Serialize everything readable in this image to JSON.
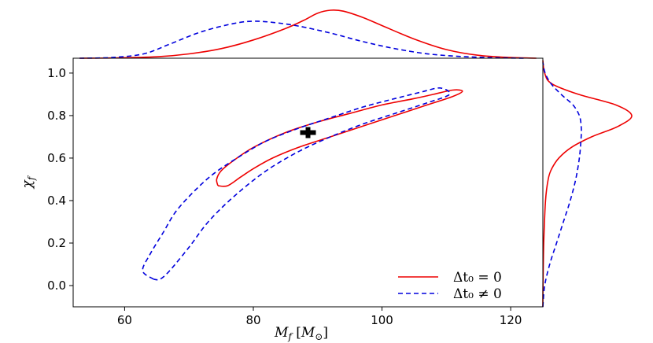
{
  "chart_data": {
    "type": "scatter",
    "xlabel": "M_f [M_⊙]",
    "ylabel": "χ_f",
    "xlim": [
      52,
      125
    ],
    "ylim": [
      -0.1,
      1.07
    ],
    "xticks": [
      "60",
      "80",
      "100",
      "120"
    ],
    "yticks": [
      "0.0",
      "0.2",
      "0.4",
      "0.6",
      "0.8",
      "1.0"
    ],
    "grid": false,
    "legend_placement": "bottom-right",
    "colors": {
      "series_a": "#ee0000",
      "series_b": "#0000dd",
      "marker": "#000000"
    },
    "marker": {
      "x": 88.5,
      "y": 0.72
    },
    "series": [
      {
        "name": "Δt₀ = 0",
        "style": "solid",
        "contour": [
          [
            74.5,
            0.47
          ],
          [
            74.3,
            0.5
          ],
          [
            75,
            0.54
          ],
          [
            77,
            0.59
          ],
          [
            80,
            0.65
          ],
          [
            85,
            0.72
          ],
          [
            90,
            0.77
          ],
          [
            95,
            0.81
          ],
          [
            100,
            0.85
          ],
          [
            105,
            0.88
          ],
          [
            108,
            0.9
          ],
          [
            111,
            0.92
          ],
          [
            112.5,
            0.915
          ],
          [
            111,
            0.89
          ],
          [
            107,
            0.85
          ],
          [
            102,
            0.8
          ],
          [
            97,
            0.75
          ],
          [
            92,
            0.7
          ],
          [
            87,
            0.65
          ],
          [
            83,
            0.6
          ],
          [
            80,
            0.55
          ],
          [
            78,
            0.51
          ],
          [
            76,
            0.47
          ],
          [
            74.5,
            0.47
          ]
        ],
        "marginal_x": [
          [
            53,
            0.0
          ],
          [
            58,
            0.005
          ],
          [
            65,
            0.03
          ],
          [
            70,
            0.09
          ],
          [
            75,
            0.2
          ],
          [
            80,
            0.38
          ],
          [
            85,
            0.62
          ],
          [
            88,
            0.8
          ],
          [
            90,
            0.94
          ],
          [
            92,
            1.0
          ],
          [
            94,
            0.98
          ],
          [
            97,
            0.85
          ],
          [
            100,
            0.68
          ],
          [
            105,
            0.4
          ],
          [
            110,
            0.18
          ],
          [
            115,
            0.06
          ],
          [
            120,
            0.015
          ],
          [
            124,
            0.0
          ]
        ],
        "marginal_y": [
          [
            -0.1,
            0.0
          ],
          [
            0.0,
            0.002
          ],
          [
            0.2,
            0.01
          ],
          [
            0.4,
            0.03
          ],
          [
            0.5,
            0.06
          ],
          [
            0.55,
            0.1
          ],
          [
            0.6,
            0.18
          ],
          [
            0.65,
            0.32
          ],
          [
            0.7,
            0.55
          ],
          [
            0.75,
            0.85
          ],
          [
            0.8,
            1.0
          ],
          [
            0.85,
            0.82
          ],
          [
            0.9,
            0.4
          ],
          [
            0.95,
            0.1
          ],
          [
            1.0,
            0.02
          ],
          [
            1.06,
            0.0
          ]
        ]
      },
      {
        "name": "Δt₀ ≠ 0",
        "style": "dashed",
        "contour": [
          [
            64.5,
            0.03
          ],
          [
            62.8,
            0.07
          ],
          [
            64,
            0.15
          ],
          [
            66,
            0.25
          ],
          [
            68,
            0.35
          ],
          [
            71,
            0.45
          ],
          [
            74,
            0.53
          ],
          [
            78,
            0.61
          ],
          [
            82,
            0.68
          ],
          [
            87,
            0.74
          ],
          [
            92,
            0.79
          ],
          [
            97,
            0.84
          ],
          [
            102,
            0.88
          ],
          [
            106,
            0.91
          ],
          [
            109,
            0.93
          ],
          [
            110.5,
            0.9
          ],
          [
            107,
            0.86
          ],
          [
            102,
            0.81
          ],
          [
            97,
            0.76
          ],
          [
            92,
            0.7
          ],
          [
            87,
            0.63
          ],
          [
            82,
            0.54
          ],
          [
            77,
            0.42
          ],
          [
            73,
            0.3
          ],
          [
            70,
            0.18
          ],
          [
            67,
            0.07
          ],
          [
            65.5,
            0.03
          ],
          [
            64.5,
            0.03
          ]
        ],
        "marginal_x": [
          [
            53,
            0.0
          ],
          [
            58,
            0.02
          ],
          [
            63,
            0.12
          ],
          [
            67,
            0.38
          ],
          [
            72,
            0.72
          ],
          [
            77,
            0.94
          ],
          [
            80,
            1.0
          ],
          [
            83,
            0.97
          ],
          [
            87,
            0.87
          ],
          [
            92,
            0.68
          ],
          [
            97,
            0.45
          ],
          [
            102,
            0.26
          ],
          [
            107,
            0.12
          ],
          [
            112,
            0.05
          ],
          [
            117,
            0.015
          ],
          [
            122,
            0.0
          ]
        ],
        "marginal_y": [
          [
            -0.1,
            0.0
          ],
          [
            0.0,
            0.04
          ],
          [
            0.1,
            0.15
          ],
          [
            0.2,
            0.3
          ],
          [
            0.3,
            0.45
          ],
          [
            0.4,
            0.6
          ],
          [
            0.5,
            0.72
          ],
          [
            0.6,
            0.8
          ],
          [
            0.7,
            0.84
          ],
          [
            0.75,
            0.84
          ],
          [
            0.8,
            0.8
          ],
          [
            0.85,
            0.66
          ],
          [
            0.9,
            0.4
          ],
          [
            0.95,
            0.18
          ],
          [
            1.0,
            0.05
          ],
          [
            1.05,
            0.0
          ]
        ]
      }
    ]
  }
}
